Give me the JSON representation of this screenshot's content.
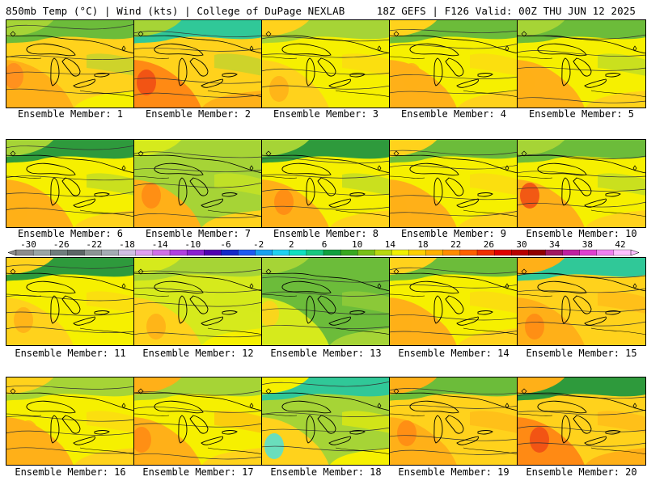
{
  "header": {
    "left": "850mb Temp (°C) | Wind (kts) | College of DuPage NEXLAB",
    "right": "18Z GEFS | F126 Valid: 00Z THU JUN 12 2025"
  },
  "members": [
    {
      "label": "Ensemble Member: 1"
    },
    {
      "label": "Ensemble Member: 2"
    },
    {
      "label": "Ensemble Member: 3"
    },
    {
      "label": "Ensemble Member: 4"
    },
    {
      "label": "Ensemble Member: 5"
    },
    {
      "label": "Ensemble Member: 6"
    },
    {
      "label": "Ensemble Member: 7"
    },
    {
      "label": "Ensemble Member: 8"
    },
    {
      "label": "Ensemble Member: 9"
    },
    {
      "label": "Ensemble Member: 10"
    },
    {
      "label": "Ensemble Member: 11"
    },
    {
      "label": "Ensemble Member: 12"
    },
    {
      "label": "Ensemble Member: 13"
    },
    {
      "label": "Ensemble Member: 14"
    },
    {
      "label": "Ensemble Member: 15"
    },
    {
      "label": "Ensemble Member: 16"
    },
    {
      "label": "Ensemble Member: 17"
    },
    {
      "label": "Ensemble Member: 18"
    },
    {
      "label": "Ensemble Member: 19"
    },
    {
      "label": "Ensemble Member: 20"
    }
  ],
  "colorbar": {
    "labels": [
      "-30",
      "-26",
      "-22",
      "-18",
      "-14",
      "-10",
      "-6",
      "-2",
      "2",
      "6",
      "10",
      "14",
      "18",
      "22",
      "26",
      "30",
      "34",
      "38",
      "42"
    ],
    "colors": [
      "#8c8c8c",
      "#9aa5a5",
      "#6f7d7d",
      "#5c6666",
      "#8c9494",
      "#a4acb4",
      "#d0bfe4",
      "#e0a0f0",
      "#d070e8",
      "#b040e0",
      "#8a20d0",
      "#5000b0",
      "#1428c8",
      "#1e5af0",
      "#18a0f0",
      "#20d0f0",
      "#10e0c0",
      "#18c880",
      "#10a040",
      "#38a820",
      "#78c018",
      "#b8d810",
      "#f0f000",
      "#ffd000",
      "#ffb000",
      "#ff8c00",
      "#ff6000",
      "#f03000",
      "#e00000",
      "#b80000",
      "#900000",
      "#a01860",
      "#c020a0",
      "#e040d0",
      "#f080f0",
      "#ffc0ff"
    ]
  }
}
